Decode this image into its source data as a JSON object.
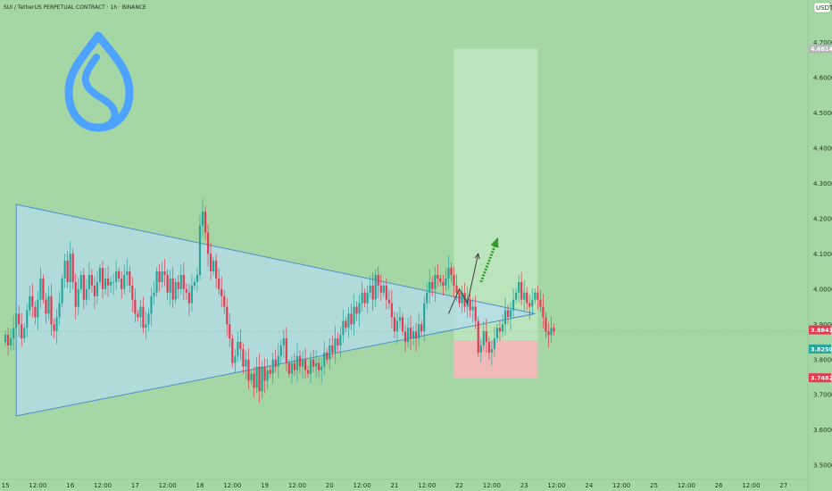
{
  "header": {
    "symbol_legend": "SUI / TetherUS PERPETUAL CONTRACT · 1h · BINANCE"
  },
  "colors": {
    "background": "#a5d6a5",
    "candle_up": "#26a69a",
    "candle_down": "#e53950",
    "triangle_fill": "#b6dcec",
    "triangle_stroke": "#4a90c8",
    "target_zone": "#bfe6bf",
    "stop_zone": "#f4b7b7",
    "logo": "#4da3ff",
    "arrow": "#3a3a3a",
    "dashed_arrow": "#2e9e2e"
  },
  "icons": {
    "logo": "sui-drop-logo-icon"
  },
  "price_scale": {
    "currency": "USDT",
    "ticks": [
      "4.7000",
      "4.6000",
      "4.5000",
      "4.4000",
      "4.3000",
      "4.2000",
      "4.1000",
      "4.0000",
      "3.9000",
      "3.8000",
      "3.7000",
      "3.6000",
      "3.5000"
    ],
    "tags": [
      {
        "text": "4.6814",
        "color": "#b7b7b7",
        "price": 4.6814
      },
      {
        "text": "3.8841",
        "color": "#e53950",
        "price": 3.8841
      },
      {
        "text": "3.8250",
        "color": "#26a69a",
        "price": 3.83
      },
      {
        "text": "3.7482",
        "color": "#e53950",
        "price": 3.7482
      }
    ]
  },
  "time_scale": {
    "ticks": [
      {
        "label": "15",
        "idx": 0
      },
      {
        "label": "12:00",
        "idx": 12
      },
      {
        "label": "16",
        "idx": 24
      },
      {
        "label": "12:00",
        "idx": 36
      },
      {
        "label": "17",
        "idx": 48
      },
      {
        "label": "12:00",
        "idx": 60
      },
      {
        "label": "18",
        "idx": 72
      },
      {
        "label": "12:00",
        "idx": 84
      },
      {
        "label": "19",
        "idx": 96
      },
      {
        "label": "12:00",
        "idx": 108
      },
      {
        "label": "20",
        "idx": 120
      },
      {
        "label": "12:00",
        "idx": 132
      },
      {
        "label": "21",
        "idx": 144
      },
      {
        "label": "12:00",
        "idx": 156
      },
      {
        "label": "22",
        "idx": 168
      },
      {
        "label": "12:00",
        "idx": 180
      },
      {
        "label": "23",
        "idx": 192
      },
      {
        "label": "12:00",
        "idx": 204
      },
      {
        "label": "24",
        "idx": 216
      },
      {
        "label": "12:00",
        "idx": 228
      },
      {
        "label": "25",
        "idx": 240
      },
      {
        "label": "12:00",
        "idx": 252
      },
      {
        "label": "26",
        "idx": 264
      },
      {
        "label": "12:00",
        "idx": 276
      },
      {
        "label": "27",
        "idx": 288
      }
    ]
  },
  "chart_data": {
    "type": "candlestick",
    "title": "",
    "ylim": [
      3.46,
      4.82
    ],
    "x_range": [
      -2,
      297
    ],
    "closes": [
      3.87,
      3.84,
      3.86,
      3.89,
      3.93,
      3.9,
      3.86,
      3.89,
      3.94,
      3.98,
      3.95,
      3.92,
      3.97,
      4.03,
      3.97,
      3.93,
      3.98,
      3.9,
      3.88,
      3.92,
      3.96,
      4.03,
      4.08,
      4.02,
      4.1,
      4.02,
      3.95,
      4.0,
      4.04,
      3.97,
      4.0,
      4.04,
      4.01,
      3.98,
      4.02,
      4.06,
      4.0,
      4.03,
      4.01,
      4.02,
      4.02,
      4.05,
      4.03,
      4.0,
      4.04,
      4.05,
      4.01,
      3.97,
      3.93,
      3.92,
      3.95,
      3.89,
      3.9,
      3.93,
      3.98,
      3.99,
      4.05,
      4.02,
      4.05,
      4.04,
      3.99,
      4.03,
      3.97,
      4.02,
      4.0,
      4.04,
      4.0,
      3.99,
      3.96,
      4.01,
      4.02,
      4.04,
      4.18,
      4.22,
      4.16,
      4.1,
      4.05,
      4.08,
      4.03,
      4.0,
      3.98,
      3.95,
      3.9,
      3.86,
      3.79,
      3.81,
      3.85,
      3.83,
      3.78,
      3.8,
      3.74,
      3.76,
      3.72,
      3.78,
      3.71,
      3.78,
      3.74,
      3.77,
      3.76,
      3.8,
      3.78,
      3.81,
      3.84,
      3.86,
      3.79,
      3.76,
      3.79,
      3.77,
      3.81,
      3.78,
      3.8,
      3.77,
      3.76,
      3.8,
      3.78,
      3.79,
      3.77,
      3.78,
      3.82,
      3.8,
      3.84,
      3.82,
      3.86,
      3.84,
      3.87,
      3.91,
      3.89,
      3.93,
      3.9,
      3.95,
      3.93,
      3.96,
      3.99,
      3.96,
      3.99,
      4.01,
      3.97,
      4.04,
      4.01,
      3.99,
      4.01,
      3.97,
      3.96,
      3.92,
      3.88,
      3.91,
      3.92,
      3.88,
      3.85,
      3.89,
      3.86,
      3.88,
      3.86,
      3.9,
      3.88,
      3.96,
      3.99,
      4.02,
      4.0,
      4.04,
      4.03,
      4.02,
      4.01,
      4.03,
      4.06,
      4.04,
      4.01,
      3.99,
      3.96,
      3.99,
      3.95,
      3.97,
      3.94,
      3.95,
      3.91,
      3.82,
      3.84,
      3.88,
      3.85,
      3.82,
      3.83,
      3.86,
      3.89,
      3.88,
      3.9,
      3.94,
      3.92,
      3.94,
      3.97,
      3.99,
      4.02,
      3.97,
      3.99,
      3.96,
      3.95,
      3.97,
      3.99,
      3.97,
      3.95,
      3.92,
      3.88,
      3.87,
      3.89,
      3.88
    ],
    "candle_width": 1.9,
    "triangle": [
      [
        4,
        4.24
      ],
      [
        4,
        3.64
      ],
      [
        196,
        3.93
      ]
    ],
    "target_zone": {
      "x0": 166,
      "x1": 197,
      "y0": 3.854,
      "y1": 4.682
    },
    "stop_zone": {
      "x0": 166,
      "x1": 197,
      "y0": 3.748,
      "y1": 3.854
    },
    "projection_path": [
      [
        164,
        3.93
      ],
      [
        168,
        4.0
      ],
      [
        171,
        3.96
      ],
      [
        175,
        4.1
      ]
    ],
    "dashed_arrow": [
      [
        176,
        4.02
      ],
      [
        182,
        4.14
      ]
    ]
  }
}
